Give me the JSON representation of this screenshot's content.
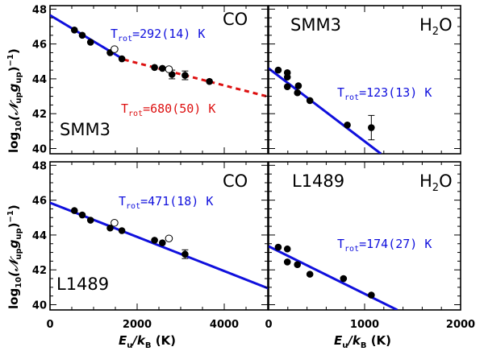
{
  "chart_data": [
    {
      "type": "scatter",
      "panel": "top-left",
      "molecule": "CO",
      "source": "SMM3",
      "xlim": [
        0,
        5000
      ],
      "ylim": [
        39.7,
        48.2
      ],
      "points": [
        [
          560,
          46.8
        ],
        [
          740,
          46.5
        ],
        [
          930,
          46.1
        ],
        [
          1380,
          45.5
        ],
        [
          1650,
          45.15
        ],
        [
          2400,
          44.65
        ],
        [
          2580,
          44.6
        ],
        [
          2800,
          44.25
        ],
        [
          3100,
          44.2
        ],
        [
          3660,
          43.85
        ]
      ],
      "errors": [
        [
          2800,
          0.25
        ],
        [
          3100,
          0.25
        ]
      ],
      "open_points": [
        [
          1480,
          45.7
        ],
        [
          2730,
          44.55
        ]
      ],
      "fits": [
        {
          "label": "T_rot=292(14) K",
          "color": "#1010dd",
          "dashed": false,
          "x": [
            0,
            1700
          ],
          "y": [
            47.65,
            45.1
          ]
        },
        {
          "label": "T_rot=680(50) K",
          "color": "#dd1010",
          "dashed": true,
          "x": [
            1700,
            5000
          ],
          "y": [
            45.1,
            42.98
          ]
        }
      ]
    },
    {
      "type": "scatter",
      "panel": "top-right",
      "molecule": "H2O",
      "source": "SMM3",
      "xlim": [
        0,
        2000
      ],
      "ylim": [
        39.7,
        48.2
      ],
      "points": [
        [
          100,
          44.5
        ],
        [
          195,
          44.35
        ],
        [
          195,
          44.1
        ],
        [
          195,
          43.55
        ],
        [
          300,
          43.2
        ],
        [
          310,
          43.6
        ],
        [
          430,
          42.75
        ],
        [
          820,
          41.35
        ],
        [
          1070,
          41.2
        ]
      ],
      "errors": [
        [
          1070,
          0.7
        ]
      ],
      "open_points": [],
      "fits": [
        {
          "label": "T_rot=123(13) K",
          "color": "#1010dd",
          "dashed": false,
          "x": [
            0,
            1170
          ],
          "y": [
            44.6,
            39.7
          ]
        }
      ]
    },
    {
      "type": "scatter",
      "panel": "bottom-left",
      "molecule": "CO",
      "source": "L1489",
      "xlim": [
        0,
        5000
      ],
      "ylim": [
        39.7,
        48.2
      ],
      "points": [
        [
          560,
          45.4
        ],
        [
          740,
          45.15
        ],
        [
          930,
          44.85
        ],
        [
          1380,
          44.4
        ],
        [
          1650,
          44.25
        ],
        [
          2400,
          43.7
        ],
        [
          2580,
          43.55
        ],
        [
          3100,
          42.9
        ]
      ],
      "errors": [
        [
          3100,
          0.25
        ]
      ],
      "open_points": [
        [
          1480,
          44.7
        ],
        [
          2730,
          43.8
        ]
      ],
      "fits": [
        {
          "label": "T_rot=471(18) K",
          "color": "#1010dd",
          "dashed": false,
          "x": [
            0,
            5000
          ],
          "y": [
            45.85,
            40.95
          ]
        }
      ]
    },
    {
      "type": "scatter",
      "panel": "bottom-right",
      "molecule": "H2O",
      "source": "L1489",
      "xlim": [
        0,
        2000
      ],
      "ylim": [
        39.7,
        48.2
      ],
      "points": [
        [
          100,
          43.3
        ],
        [
          195,
          43.2
        ],
        [
          195,
          42.45
        ],
        [
          300,
          42.3
        ],
        [
          430,
          41.75
        ],
        [
          780,
          41.5
        ],
        [
          1070,
          40.55
        ]
      ],
      "errors": [],
      "open_points": [],
      "fits": [
        {
          "label": "T_rot=174(27) K",
          "color": "#1010dd",
          "dashed": false,
          "x": [
            0,
            1340
          ],
          "y": [
            43.35,
            39.7
          ]
        }
      ]
    }
  ],
  "labels": {
    "co": "CO",
    "h2o_prefix": "H",
    "h2o_sub": "2",
    "h2o_suffix": "O",
    "smm3": "SMM3",
    "l1489": "L1489",
    "t_prefix": "T",
    "t_sub": "rot",
    "fit_tl_blue": "=292(14) K",
    "fit_tl_red": "=680(50) K",
    "fit_tr": "=123(13) K",
    "fit_bl": "=471(18) K",
    "fit_br": "=174(27) K",
    "ylabel_log": "log",
    "ylabel_sub10": "10",
    "ylabel_N": "(𝒩",
    "ylabel_up1": "up",
    "ylabel_g": "g",
    "ylabel_up2": "up",
    "ylabel_exp": "−1",
    "ylabel_close": ")",
    "xlabel_E": "E",
    "xlabel_u": "u",
    "xlabel_slash": "/k",
    "xlabel_B": "B",
    "xlabel_unit": " (K)"
  },
  "ticks": {
    "y": [
      "40",
      "42",
      "44",
      "46",
      "48"
    ],
    "x_left": [
      "0",
      "2000",
      "4000"
    ],
    "x_right": [
      "0",
      "1000",
      "2000"
    ]
  }
}
